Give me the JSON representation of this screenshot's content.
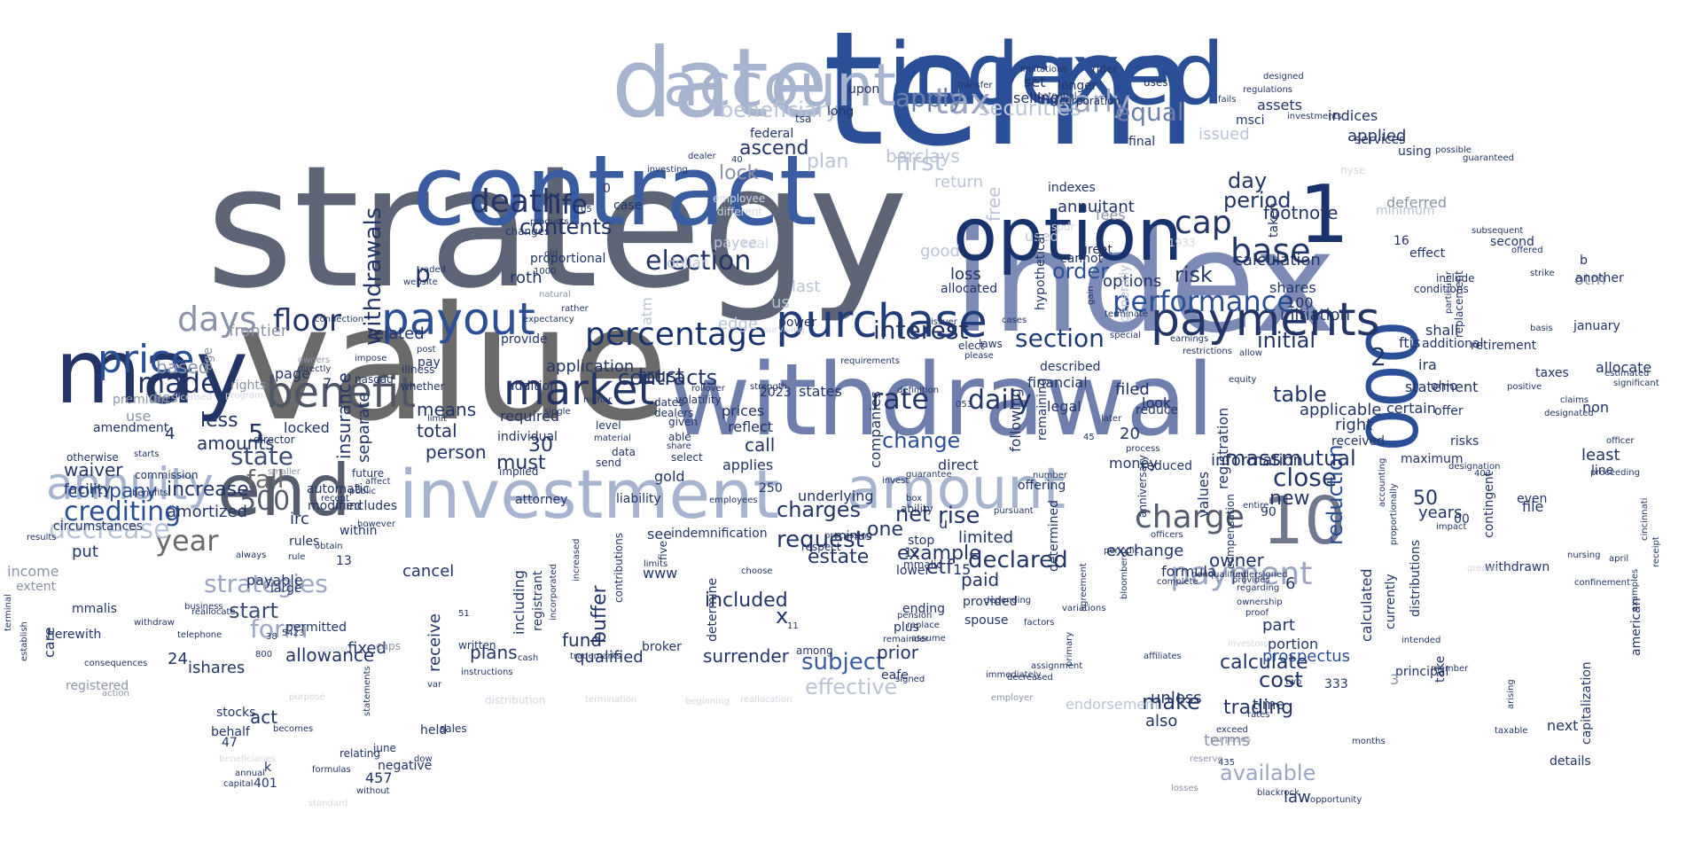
{
  "words": {
    "strategy": "strategy",
    "value": "value",
    "term": "term",
    "index": "index",
    "contract": "contract",
    "withdrawal": "withdrawal",
    "indexed": "indexed",
    "date": "date",
    "may": "may",
    "option": "option",
    "n1": "1",
    "investment": "investment",
    "end": "end",
    "account": "account",
    "amount": "amount",
    "n10": "10",
    "n000": "000",
    "payout": "payout",
    "purchase": "purchase",
    "benefit": "benefit",
    "market": "market",
    "annuity": "annuity",
    "payments": "payments",
    "price": "price",
    "percentage": "percentage",
    "charge": "charge",
    "death": "death",
    "payment": "payment",
    "base": "base",
    "tax": "tax",
    "performance": "performance",
    "cap": "cap",
    "withdrawals": "withdrawals",
    "days": "days",
    "made": "made",
    "floor": "floor",
    "interest": "interest",
    "contracts": "contracts",
    "election": "election",
    "section": "section",
    "daily": "daily",
    "rate": "rate",
    "strategies": "strategies",
    "year": "year",
    "decrease": "decrease",
    "crediting": "crediting",
    "state": "state",
    "fall": "fall",
    "n500": "500",
    "start": "start",
    "form": "form",
    "life": "life",
    "contents": "contents",
    "beneficiary": "beneficiary",
    "securities": "securities",
    "early": "early",
    "equal": "equal",
    "first": "first",
    "apply": "apply",
    "day": "day",
    "period": "period",
    "footnote": "footnote",
    "risk": "risk",
    "order": "order",
    "initial": "initial",
    "table": "table",
    "close": "close",
    "reduction": "reduction",
    "n50": "50",
    "new": "new",
    "massmutual": "massmutual",
    "declared": "declared",
    "example": "example",
    "change": "change",
    "rise": "rise",
    "net": "net",
    "one": "one",
    "request": "request",
    "charges": "charges",
    "etf": "etf",
    "subject": "subject",
    "effective": "effective",
    "surrender": "surrender",
    "included": "included",
    "buffer": "buffer",
    "fund": "fund",
    "must": "must",
    "n30": "30",
    "company": "company",
    "increase": "increase",
    "amortized": "amortized",
    "less": "less",
    "amounts": "amounts",
    "insurance": "insurance",
    "separate": "separate",
    "person": "person",
    "total": "total",
    "means": "means",
    "trust": "trust",
    "application": "application",
    "related": "related",
    "based": "based",
    "frontier": "frontier",
    "page": "page",
    "waiver": "waiver",
    "facility": "facility",
    "circumstances": "circumstances",
    "ishares": "ishares",
    "allowance": "allowance",
    "act": "act",
    "fixed": "fixed",
    "cancel": "cancel",
    "payable": "payable",
    "locked": "locked",
    "irc": "irc",
    "rules": "rules",
    "put": "put",
    "income": "income",
    "extent": "extent",
    "care": "care",
    "registered": "registered",
    "n24": "24",
    "stocks": "stocks",
    "behalf": "behalf",
    "held": "held",
    "negative": "negative",
    "receive": "receive",
    "plans": "plans",
    "qualified": "qualified",
    "broker": "broker",
    "prior": "prior",
    "eafe": "eafe",
    "trading": "trading",
    "available": "available",
    "law": "law",
    "calculate": "calculate",
    "cost": "cost",
    "make": "make",
    "also": "also",
    "terms": "terms",
    "prospectus": "prospectus",
    "part": "part",
    "portion": "portion",
    "owner": "owner",
    "exchange": "exchange",
    "formula": "formula",
    "calculated": "calculated",
    "currently": "currently",
    "distributions": "distributions",
    "principal": "principal",
    "take": "take",
    "statement": "statement",
    "applicable": "applicable",
    "right": "right",
    "certain": "certain",
    "information": "information",
    "values": "values",
    "registration": "registration",
    "received": "received",
    "shares": "shares",
    "initiation": "initiation",
    "cannot": "cannot",
    "options": "options",
    "calculation": "calculation",
    "taken": "taken",
    "applied": "applied",
    "indices": "indices",
    "assets": "assets",
    "issued": "issued",
    "fees": "fees",
    "annuitant": "annuitant",
    "deferred": "deferred",
    "lock": "lock",
    "ascend": "ascend",
    "plan": "plan",
    "barclays": "barclays",
    "free": "free",
    "return": "return",
    "good": "good",
    "used": "used",
    "loss": "loss",
    "us": "us",
    "last": "last",
    "atm": "atm",
    "edge": "edge",
    "dollar": "dollar",
    "roth": "roth",
    "payee": "payee",
    "determined": "determined",
    "filed": "filed",
    "following": "following",
    "financial": "financial",
    "money": "money",
    "described": "described",
    "endorsement": "endorsement",
    "unless": "unless",
    "time": "time",
    "paid": "paid",
    "provided": "provided",
    "limited": "limited",
    "spouse": "spouse",
    "estate": "estate",
    "underlying": "underlying",
    "call": "call",
    "applies": "applies",
    "reflect": "reflect",
    "prices": "prices",
    "required": "required",
    "individual": "individual",
    "gold": "gold",
    "see": "see",
    "including": "including",
    "registrant": "registrant",
    "indemnification": "indemnification",
    "determine": "determine",
    "liability": "liability",
    "attorney": "attorney",
    "n20": "20",
    "n5": "5",
    "n4": "4",
    "p": "p",
    "x": "x",
    "n2": "2",
    "n6": "6",
    "n100": "100",
    "n15": "15",
    "n12": "12",
    "n2023": "2023",
    "n250": "250",
    "n90": "90",
    "n00": "00",
    "n457": "457",
    "n401": "401",
    "n47": "47",
    "n13": "13",
    "n7": "7",
    "n3": "3",
    "n16": "16",
    "n0": "0",
    "otm": "otm",
    "years": "years",
    "file": "file",
    "next": "next",
    "details": "details",
    "capitalization": "capitalization",
    "american": "american",
    "least": "least",
    "line": "line",
    "non": "non",
    "january": "january",
    "allocate": "allocate",
    "taxes": "taxes",
    "retirement": "retirement",
    "additional": "additional",
    "maximum": "maximum",
    "ira": "ira",
    "ftis": "ftis",
    "shall": "shall",
    "ohio": "ohio",
    "offer": "offer",
    "risks": "risks",
    "even": "even",
    "contingent": "contingent",
    "withdrawn": "withdrawn",
    "services": "services",
    "using": "using",
    "second": "second",
    "another": "another",
    "b": "b",
    "include": "include",
    "minimum": "minimum",
    "effect": "effect",
    "replacement": "replacement",
    "conditions": "conditions",
    "generally": "generally",
    "great": "great",
    "final": "final",
    "indexes": "indexes",
    "offering": "offering",
    "anniversary": "anniversary",
    "compensation": "compensation",
    "reduce": "reduce",
    "reduced": "reduced",
    "legal": "legal",
    "hypothetical": "hypothetical",
    "remaining": "remaining",
    "direct": "direct",
    "elect": "elect",
    "laws": "laws",
    "allocated": "allocated",
    "states": "states",
    "companies": "companies",
    "minus": "minus",
    "lower": "lower",
    "stop": "stop",
    "ending": "ending",
    "plus": "plus",
    "u": "u",
    "mmalic": "mmalic",
    "power": "power",
    "volatility": "volatility",
    "dealers": "dealers",
    "dates": "dates",
    "addition": "addition",
    "provide": "provide",
    "proportional": "proportional",
    "changes": "changes",
    "case": "case",
    "federal": "federal",
    "tsa": "tsa",
    "long": "long",
    "upon": "upon",
    "selling": "selling",
    "set": "set",
    "longer": "longer",
    "corporation": "corporation",
    "rider": "rider",
    "uses": "uses",
    "limitations": "limitations",
    "regulations": "regulations",
    "dies": "dies",
    "use": "use",
    "premium": "premium",
    "amendment": "amendment",
    "otherwise": "otherwise",
    "commission": "commission",
    "director": "director",
    "future": "future",
    "automatic": "automatic",
    "modified": "modified",
    "includes": "includes",
    "within": "within",
    "herewith": "herewith",
    "mmalis": "mmalis",
    "large": "large",
    "permitted": "permitted",
    "caps": "caps",
    "written": "written",
    "pay": "pay",
    "whether": "whether",
    "illness": "illness",
    "age": "age",
    "connection": "connection",
    "owners": "owners",
    "rights": "rights",
    "june": "june",
    "relating": "relating",
    "nasdaq": "nasdaq",
    "k": "k",
    "n1000": "1000",
    "natural": "natural",
    "expectancy": "expectancy",
    "surviving": "surviving",
    "employee": "employee",
    "real": "real",
    "investing": "investing",
    "distribution": "distribution",
    "termination": "termination",
    "beginning": "beginning",
    "reallocation": "reallocation",
    "employer": "employer",
    "immediately": "immediately",
    "assignment": "assignment",
    "affiliates": "affiliates",
    "investors": "investors",
    "intended": "intended",
    "reserve": "reserve",
    "purposes": "purposes",
    "losses": "losses",
    "blackrock": "blackrock",
    "proportionally": "proportionally",
    "accounting": "accounting",
    "bloomberg": "bloomberg",
    "agreement": "agreement",
    "periodic": "periodic",
    "number": "number",
    "factors": "factors",
    "primary": "primary",
    "variations": "variations",
    "complete": "complete",
    "nursing": "nursing",
    "receipt": "receipt",
    "cincinnati": "cincinnati",
    "confinement": "confinement",
    "april": "april",
    "officer": "officer",
    "proceeding": "proceeding",
    "designated": "designated",
    "claims": "claims",
    "guaranteed": "guaranteed",
    "subsequent": "subsequent",
    "offered": "offered",
    "particular": "particular",
    "strike": "strike",
    "positive": "positive",
    "estimated": "estimated",
    "significant": "significant",
    "years2": "years",
    "n333": "333",
    "n435": "435",
    "n45": "45",
    "n5423": "5423",
    "n38": "38",
    "n9": "9",
    "n053": "053",
    "look": "look",
    "processing": "processing",
    "respect": "respect",
    "among": "among",
    "www": "www",
    "five": "five",
    "sales": "sales",
    "send": "send",
    "data": "data",
    "select": "select",
    "able": "able",
    "given": "given",
    "share": "share",
    "level": "level",
    "material": "material",
    "implied": "implied",
    "employees": "employees",
    "increased": "increased",
    "incorporated": "incorporated",
    "contributions": "contributions",
    "limits": "limits",
    "trademarks": "trademarks",
    "cash": "cash",
    "instructions": "instructions",
    "standard": "standard",
    "beneficiaries": "beneficiaries",
    "annual": "annual",
    "capital": "capital",
    "action": "action",
    "consequences": "consequences",
    "reallocate": "reallocate",
    "terminal": "terminal",
    "withdraw": "withdraw",
    "results": "results",
    "establish": "establish",
    "telephone": "telephone",
    "business": "business",
    "statements": "statements",
    "purpose": "purpose",
    "sponsor": "sponsor",
    "without": "without",
    "formulas": "formulas",
    "dow": "dow",
    "fails": "fails",
    "transfer": "transfer",
    "potential": "potential",
    "designed": "designed",
    "certain2": "certain",
    "issuer": "issuer",
    "cases": "cases",
    "please": "please",
    "requirements": "requirements",
    "strength": "strength",
    "rollover": "rollover",
    "higher": "higher",
    "single": "single",
    "limit": "limit",
    "impose": "impose",
    "post": "post",
    "website": "website",
    "traded": "traded",
    "products": "products",
    "old": "old",
    "rather": "rather",
    "earnings": "earnings",
    "restrictions": "restrictions",
    "allow": "allow",
    "equity": "equity",
    "terminate": "terminate",
    "gain": "gain",
    "special": "special",
    "later": "later",
    "process": "process",
    "spdr": "spdr",
    "msci": "msci",
    "nyse": "nyse",
    "n1933": "1933",
    "definition": "definition",
    "guarantee": "guarantee",
    "invest": "invest",
    "pension": "pension",
    "replace": "replace",
    "remainder": "remainder",
    "signed": "signed",
    "box": "box",
    "ability": "ability",
    "depending": "depending",
    "pursuant": "pursuant",
    "officers": "officers",
    "entire": "entire",
    "undersigned": "undersigned",
    "provides": "provides",
    "nonqualified": "nonqualified",
    "regarding": "regarding",
    "ownership": "ownership",
    "proof": "proof",
    "two": "two",
    "rates": "rates",
    "exceed": "exceed",
    "months": "months",
    "greater": "greater",
    "impact": "impact",
    "taxable": "taxable",
    "arising": "arising",
    "opportunity": "opportunity",
    "examples": "examples",
    "designation": "designation",
    "n403": "403",
    "rule": "rule",
    "recent": "recent",
    "public": "public",
    "smaller": "smaller",
    "affect": "affect",
    "licensed": "licensed",
    "program": "program",
    "directly": "directly",
    "benefits": "benefits",
    "starts": "starts",
    "however": "however",
    "obtain": "obtain",
    "always": "always",
    "becomes": "becomes",
    "n51": "51",
    "n800": "800",
    "var": "var",
    "choose": "choose",
    "decreased": "decreased",
    "investments": "investments",
    "possible": "possible",
    "member": "member",
    "dealer": "dealer",
    "different": "different",
    "n40": "40",
    "n05": "05",
    "n11": "11",
    "assume": "assume",
    "n4b": "4",
    "basis": "basis"
  },
  "palette": {
    "navy": "#1f3b7a",
    "blue": "#2b4f96",
    "slate": "#5c6475",
    "gray": "#6a6a6a",
    "periwinkle": "#6e7fae",
    "light": "#a6b4d0",
    "faint": "#d3d8e2"
  }
}
